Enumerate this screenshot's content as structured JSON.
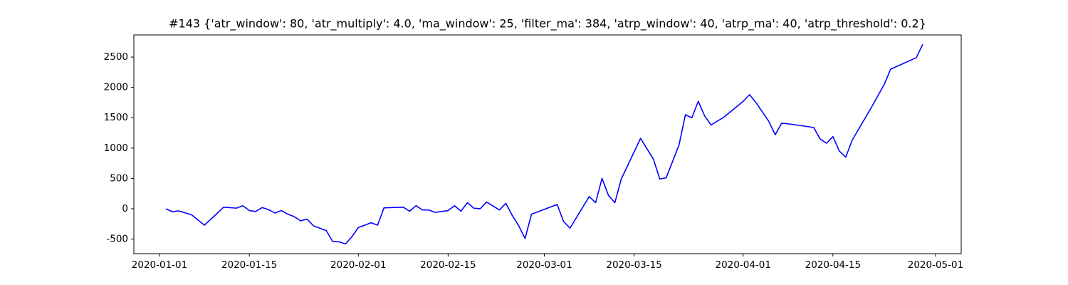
{
  "chart_data": {
    "type": "line",
    "title": "#143 {'atr_window': 80, 'atr_multiply': 4.0, 'ma_window': 25, 'filter_ma': 384, 'atrp_window': 40, 'atrp_ma': 40, 'atrp_threshold': 0.2}",
    "x": [
      "2020-01-02",
      "2020-01-03",
      "2020-01-04",
      "2020-01-06",
      "2020-01-08",
      "2020-01-11",
      "2020-01-13",
      "2020-01-14",
      "2020-01-15",
      "2020-01-16",
      "2020-01-17",
      "2020-01-18",
      "2020-01-19",
      "2020-01-20",
      "2020-01-21",
      "2020-01-22",
      "2020-01-23",
      "2020-01-24",
      "2020-01-25",
      "2020-01-27",
      "2020-01-28",
      "2020-01-29",
      "2020-01-30",
      "2020-01-31",
      "2020-02-01",
      "2020-02-03",
      "2020-02-04",
      "2020-02-05",
      "2020-02-08",
      "2020-02-09",
      "2020-02-10",
      "2020-02-11",
      "2020-02-12",
      "2020-02-13",
      "2020-02-15",
      "2020-02-16",
      "2020-02-17",
      "2020-02-18",
      "2020-02-19",
      "2020-02-20",
      "2020-02-21",
      "2020-02-23",
      "2020-02-24",
      "2020-02-25",
      "2020-02-26",
      "2020-02-27",
      "2020-02-28",
      "2020-03-03",
      "2020-03-04",
      "2020-03-05",
      "2020-03-08",
      "2020-03-09",
      "2020-03-10",
      "2020-03-11",
      "2020-03-12",
      "2020-03-13",
      "2020-03-16",
      "2020-03-18",
      "2020-03-19",
      "2020-03-20",
      "2020-03-22",
      "2020-03-23",
      "2020-03-24",
      "2020-03-25",
      "2020-03-26",
      "2020-03-27",
      "2020-03-29",
      "2020-04-01",
      "2020-04-02",
      "2020-04-03",
      "2020-04-05",
      "2020-04-06",
      "2020-04-07",
      "2020-04-08",
      "2020-04-12",
      "2020-04-13",
      "2020-04-14",
      "2020-04-15",
      "2020-04-16",
      "2020-04-17",
      "2020-04-18",
      "2020-04-21",
      "2020-04-23",
      "2020-04-24",
      "2020-04-28",
      "2020-04-29"
    ],
    "series": [
      {
        "color": "#0000ff",
        "values": [
          0,
          -50,
          -35,
          -100,
          -270,
          25,
          10,
          50,
          -30,
          -45,
          20,
          -15,
          -70,
          -30,
          -90,
          -130,
          -200,
          -170,
          -280,
          -360,
          -540,
          -545,
          -580,
          -460,
          -310,
          -230,
          -270,
          15,
          25,
          -40,
          50,
          -20,
          -20,
          -60,
          -30,
          50,
          -40,
          100,
          10,
          0,
          110,
          -20,
          90,
          -110,
          -280,
          -490,
          -90,
          70,
          -210,
          -320,
          200,
          100,
          500,
          220,
          100,
          490,
          1160,
          820,
          490,
          510,
          1050,
          1550,
          1500,
          1770,
          1530,
          1380,
          1510,
          1770,
          1880,
          1750,
          1440,
          1220,
          1410,
          1400,
          1340,
          1150,
          1080,
          1190,
          950,
          850,
          1130,
          1670,
          2050,
          2300,
          2490,
          2710
        ]
      }
    ],
    "xlim": [
      "2019-12-28",
      "2020-05-05"
    ],
    "xticks": [
      "2020-01-01",
      "2020-01-15",
      "2020-02-01",
      "2020-02-15",
      "2020-03-01",
      "2020-03-15",
      "2020-04-01",
      "2020-04-15",
      "2020-05-01"
    ],
    "ylim": [
      -740,
      2865
    ],
    "yticks": [
      -500,
      0,
      500,
      1000,
      1500,
      2000,
      2500
    ],
    "grid": false
  }
}
